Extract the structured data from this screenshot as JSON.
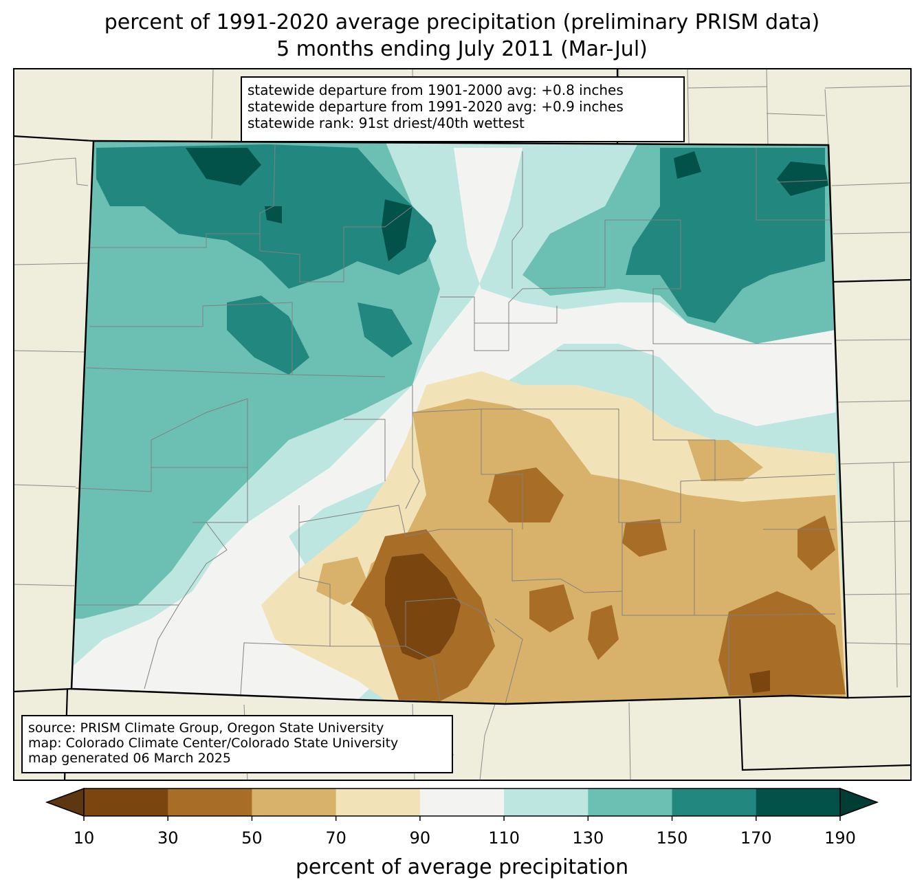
{
  "title": {
    "line1": "percent of 1991-2020 average precipitation (preliminary PRISM data)",
    "line2": "5 months ending July 2011 (Mar-Jul)"
  },
  "stats": {
    "line1": "statewide departure from 1901-2000 avg: +0.8 inches",
    "line2": "statewide departure from 1991-2020 avg: +0.9 inches",
    "line3": "statewide rank: 91st driest/40th wettest"
  },
  "source": {
    "line1": "source: PRISM Climate Group, Oregon State University",
    "line2": "map: Colorado Climate Center/Colorado State University",
    "line3": "map generated 06 March 2025"
  },
  "colorbar": {
    "label": "percent of average precipitation",
    "ticks": [
      "10",
      "30",
      "50",
      "70",
      "90",
      "110",
      "130",
      "150",
      "170",
      "190"
    ],
    "colors": [
      "#5c3710",
      "#7a450f",
      "#a86e27",
      "#d8b26b",
      "#f2e2b8",
      "#f3f4f1",
      "#bde6e1",
      "#6cc0b3",
      "#21877f",
      "#02524a",
      "#013d35"
    ]
  },
  "map": {
    "background": "#efeedc",
    "region": "Colorado",
    "zones": [
      {
        "name": "northwest",
        "class": "130-150"
      },
      {
        "name": "north-central",
        "class": "150-170"
      },
      {
        "name": "northeast",
        "class": "150-170"
      },
      {
        "name": "central-plains",
        "class": "90-110"
      },
      {
        "name": "southwest",
        "class": "90-110"
      },
      {
        "name": "south-central",
        "class": "10-30"
      },
      {
        "name": "southeast",
        "class": "30-50"
      }
    ]
  }
}
